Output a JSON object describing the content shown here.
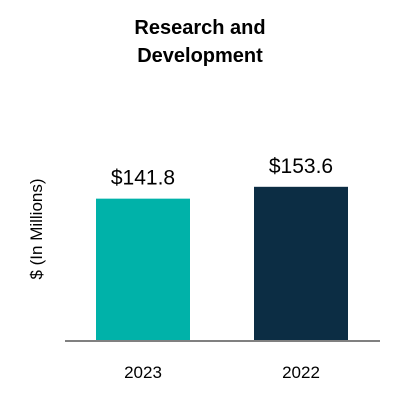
{
  "chart_data": {
    "type": "bar",
    "title_lines": [
      "Research and",
      "Development"
    ],
    "ylabel": "$ (In Millions)",
    "xlabel": "",
    "categories": [
      "2023",
      "2022"
    ],
    "values": [
      141.8,
      153.6
    ],
    "data_labels": [
      "$141.8",
      "$153.6"
    ],
    "colors": [
      "#00B2A9",
      "#0C2D44"
    ],
    "axis_color": "#808080",
    "ylim": [
      0,
      260
    ],
    "grid": false,
    "legend": "none"
  }
}
